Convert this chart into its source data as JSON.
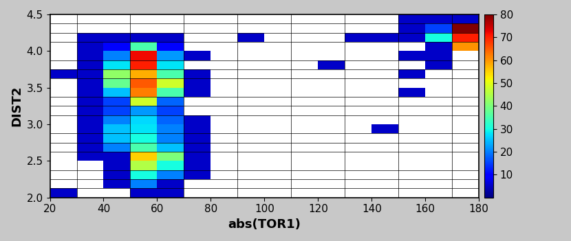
{
  "xlabel": "abs(TOR1)",
  "ylabel": "DIST2",
  "colorbar_ticks": [
    10,
    20,
    30,
    40,
    50,
    60,
    70,
    80
  ],
  "vmin": 0,
  "vmax": 80,
  "x_edges": [
    20,
    30,
    40,
    50,
    60,
    70,
    80,
    90,
    100,
    110,
    120,
    130,
    140,
    150,
    160,
    170,
    180
  ],
  "y_edges": [
    2.0,
    2.125,
    2.25,
    2.375,
    2.5,
    2.625,
    2.75,
    2.875,
    3.0,
    3.125,
    3.25,
    3.375,
    3.5,
    3.625,
    3.75,
    3.875,
    4.0,
    4.125,
    4.25,
    4.375,
    4.5
  ],
  "grid_top_to_bottom": [
    [
      0,
      0,
      0,
      0,
      0,
      0,
      0,
      0,
      0,
      0,
      0,
      0,
      0,
      5,
      5,
      5
    ],
    [
      0,
      0,
      0,
      0,
      0,
      0,
      0,
      0,
      0,
      0,
      0,
      0,
      0,
      5,
      15,
      80
    ],
    [
      0,
      5,
      5,
      5,
      5,
      0,
      0,
      5,
      0,
      0,
      0,
      5,
      5,
      5,
      30,
      70
    ],
    [
      0,
      5,
      10,
      35,
      10,
      0,
      0,
      0,
      0,
      0,
      0,
      0,
      0,
      0,
      5,
      60
    ],
    [
      0,
      5,
      20,
      72,
      22,
      5,
      0,
      0,
      0,
      0,
      0,
      0,
      0,
      5,
      5,
      0
    ],
    [
      0,
      5,
      28,
      70,
      28,
      0,
      0,
      0,
      0,
      0,
      5,
      0,
      0,
      0,
      5,
      0
    ],
    [
      5,
      5,
      42,
      58,
      35,
      5,
      0,
      0,
      0,
      0,
      0,
      0,
      0,
      5,
      0,
      0
    ],
    [
      0,
      5,
      38,
      65,
      48,
      5,
      0,
      0,
      0,
      0,
      0,
      0,
      0,
      0,
      0,
      0
    ],
    [
      0,
      5,
      25,
      62,
      35,
      5,
      0,
      0,
      0,
      0,
      0,
      0,
      0,
      5,
      0,
      0
    ],
    [
      0,
      5,
      15,
      48,
      18,
      0,
      0,
      0,
      0,
      0,
      0,
      0,
      0,
      0,
      0,
      0
    ],
    [
      0,
      5,
      15,
      22,
      15,
      0,
      0,
      0,
      0,
      0,
      0,
      0,
      0,
      0,
      0,
      0
    ],
    [
      0,
      5,
      20,
      27,
      18,
      5,
      0,
      0,
      0,
      0,
      0,
      0,
      0,
      0,
      0,
      0
    ],
    [
      0,
      5,
      25,
      28,
      20,
      5,
      0,
      0,
      0,
      0,
      0,
      0,
      5,
      0,
      0,
      0
    ],
    [
      0,
      5,
      25,
      30,
      20,
      5,
      0,
      0,
      0,
      0,
      0,
      0,
      0,
      0,
      0,
      0
    ],
    [
      0,
      5,
      20,
      35,
      25,
      5,
      0,
      0,
      0,
      0,
      0,
      0,
      0,
      0,
      0,
      0
    ],
    [
      0,
      5,
      5,
      55,
      40,
      5,
      0,
      0,
      0,
      0,
      0,
      0,
      0,
      0,
      0,
      0
    ],
    [
      0,
      0,
      5,
      45,
      30,
      5,
      0,
      0,
      0,
      0,
      0,
      0,
      0,
      0,
      0,
      0
    ],
    [
      0,
      0,
      5,
      30,
      20,
      5,
      0,
      0,
      0,
      0,
      0,
      0,
      0,
      0,
      0,
      0
    ],
    [
      0,
      0,
      5,
      20,
      5,
      0,
      0,
      0,
      0,
      0,
      0,
      0,
      0,
      0,
      0,
      0
    ],
    [
      5,
      0,
      0,
      5,
      5,
      0,
      0,
      0,
      0,
      0,
      0,
      0,
      0,
      0,
      0,
      0
    ]
  ],
  "background_color": "#c8c8c8"
}
